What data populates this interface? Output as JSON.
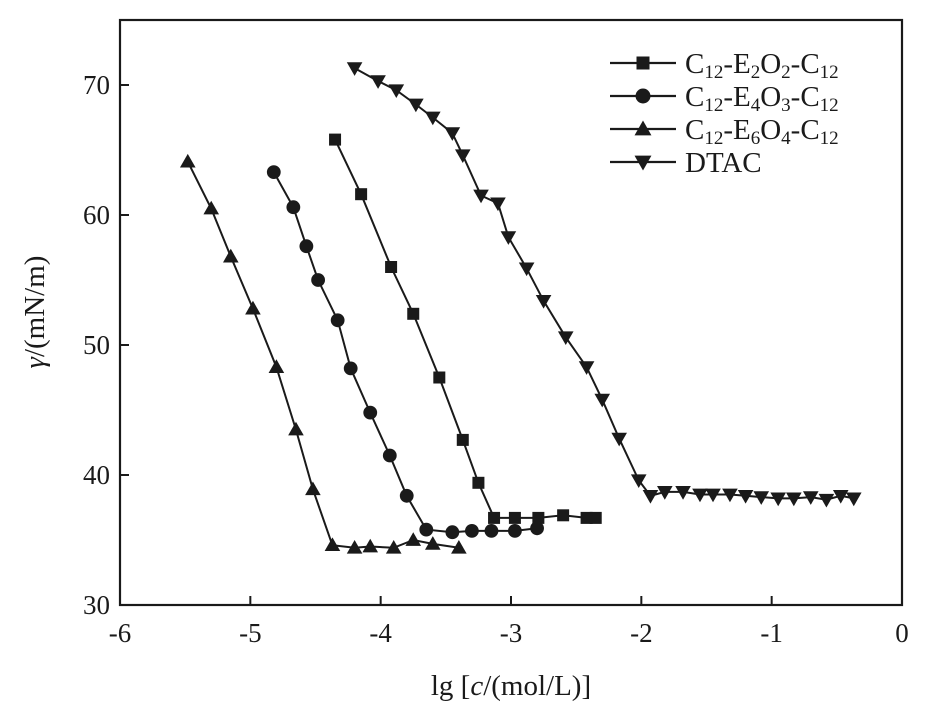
{
  "chart_data": {
    "type": "scatter",
    "title": "",
    "xlabel_prefix": "lg [",
    "xlabel_var": "c",
    "xlabel_suffix": "/(mol/L)]",
    "ylabel_var": "γ",
    "ylabel_suffix": "/(mN/m)",
    "xlim": [
      -6,
      0
    ],
    "ylim": [
      30,
      75
    ],
    "xticks": [
      -6,
      -5,
      -4,
      -3,
      -2,
      -1,
      0
    ],
    "xtick_labels": [
      "-6",
      "-5",
      "-4",
      "-3",
      "-2",
      "-1",
      "0"
    ],
    "yticks": [
      30,
      40,
      50,
      60,
      70
    ],
    "ytick_labels": [
      "30",
      "40",
      "50",
      "60",
      "70"
    ],
    "grid": false,
    "legend_position": "top-right",
    "colors": {
      "series": "#1a1a1a",
      "background": "#ffffff"
    },
    "series": [
      {
        "name": "C12-E2O2-C12",
        "marker": "square",
        "legend_parts": [
          [
            "C",
            "n"
          ],
          [
            "12",
            "s"
          ],
          [
            "-E",
            "n"
          ],
          [
            "2",
            "s"
          ],
          [
            "O",
            "n"
          ],
          [
            "2",
            "s"
          ],
          [
            "-C",
            "n"
          ],
          [
            "12",
            "s"
          ]
        ],
        "x": [
          -4.35,
          -4.15,
          -3.92,
          -3.75,
          -3.55,
          -3.37,
          -3.25,
          -3.13,
          -2.97,
          -2.79,
          -2.6,
          -2.42,
          -2.35
        ],
        "y": [
          65.8,
          61.6,
          56.0,
          52.4,
          47.5,
          42.7,
          39.4,
          36.7,
          36.7,
          36.7,
          36.9,
          36.7,
          36.7
        ]
      },
      {
        "name": "C12-E4O3-C12",
        "marker": "circle",
        "legend_parts": [
          [
            "C",
            "n"
          ],
          [
            "12",
            "s"
          ],
          [
            "-E",
            "n"
          ],
          [
            "4",
            "s"
          ],
          [
            "O",
            "n"
          ],
          [
            "3",
            "s"
          ],
          [
            "-C",
            "n"
          ],
          [
            "12",
            "s"
          ]
        ],
        "x": [
          -4.82,
          -4.67,
          -4.57,
          -4.48,
          -4.33,
          -4.23,
          -4.08,
          -3.93,
          -3.8,
          -3.65,
          -3.45,
          -3.3,
          -3.15,
          -2.97,
          -2.8
        ],
        "y": [
          63.3,
          60.6,
          57.6,
          55.0,
          51.9,
          48.2,
          44.8,
          41.5,
          38.4,
          35.8,
          35.6,
          35.7,
          35.7,
          35.7,
          35.9
        ]
      },
      {
        "name": "C12-E6O4-C12",
        "marker": "triangle-up",
        "legend_parts": [
          [
            "C",
            "n"
          ],
          [
            "12",
            "s"
          ],
          [
            "-E",
            "n"
          ],
          [
            "6",
            "s"
          ],
          [
            "O",
            "n"
          ],
          [
            "4",
            "s"
          ],
          [
            "-C",
            "n"
          ],
          [
            "12",
            "s"
          ]
        ],
        "x": [
          -5.48,
          -5.3,
          -5.15,
          -4.98,
          -4.8,
          -4.65,
          -4.52,
          -4.37,
          -4.2,
          -4.08,
          -3.9,
          -3.75,
          -3.6,
          -3.4
        ],
        "y": [
          64.1,
          60.5,
          56.8,
          52.8,
          48.3,
          43.5,
          38.9,
          34.6,
          34.4,
          34.5,
          34.4,
          35.0,
          34.7,
          34.4
        ]
      },
      {
        "name": "DTAC",
        "marker": "triangle-down",
        "legend_parts": [
          [
            "DTAC",
            "n"
          ]
        ],
        "x": [
          -4.2,
          -4.02,
          -3.88,
          -3.73,
          -3.6,
          -3.45,
          -3.37,
          -3.23,
          -3.1,
          -3.02,
          -2.88,
          -2.75,
          -2.58,
          -2.42,
          -2.3,
          -2.17,
          -2.02,
          -1.93,
          -1.82,
          -1.68,
          -1.55,
          -1.45,
          -1.32,
          -1.2,
          -1.08,
          -0.95,
          -0.83,
          -0.7,
          -0.58,
          -0.47,
          -0.37
        ],
        "y": [
          71.3,
          70.3,
          69.6,
          68.5,
          67.5,
          66.3,
          64.6,
          61.5,
          60.9,
          58.3,
          55.9,
          53.4,
          50.6,
          48.3,
          45.8,
          42.8,
          39.6,
          38.4,
          38.7,
          38.7,
          38.5,
          38.5,
          38.5,
          38.4,
          38.3,
          38.2,
          38.2,
          38.3,
          38.1,
          38.4,
          38.2
        ]
      }
    ]
  }
}
